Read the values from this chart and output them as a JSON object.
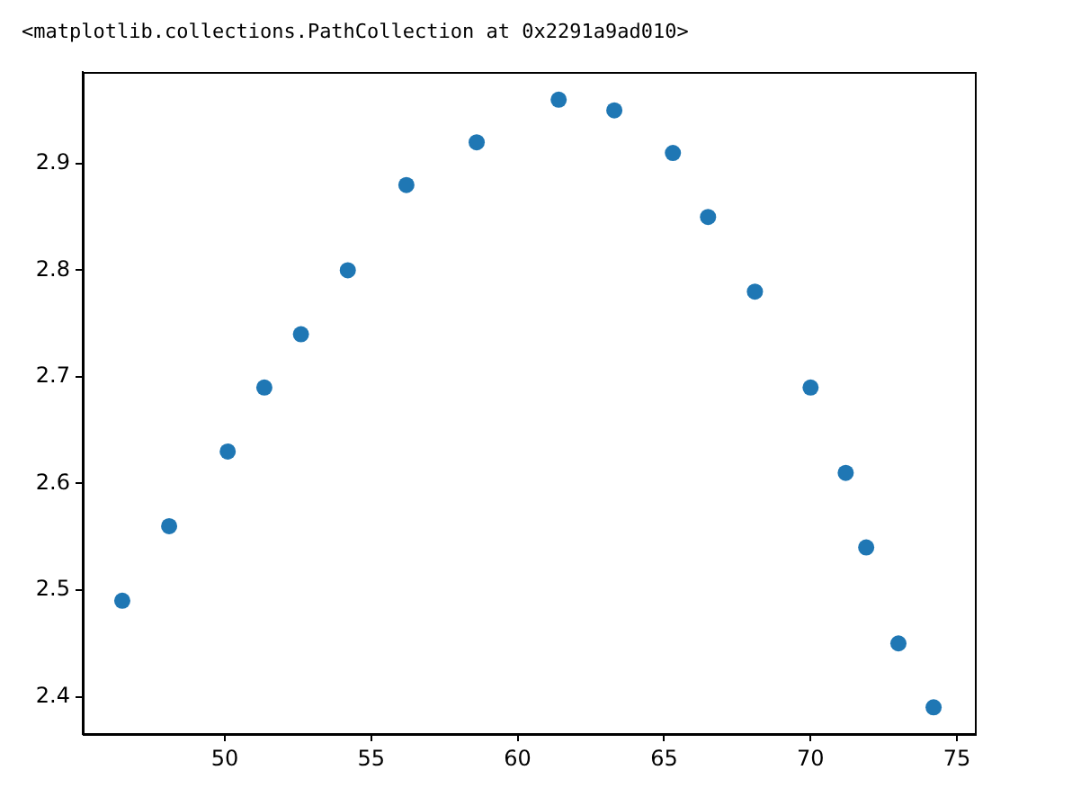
{
  "chart_data": {
    "type": "scatter",
    "annotations": [
      "<matplotlib.collections.PathCollection at 0x2291a9ad010>"
    ],
    "x": [
      46.5,
      48.1,
      50.1,
      51.35,
      52.6,
      54.2,
      56.2,
      58.6,
      61.4,
      63.3,
      65.3,
      66.5,
      68.1,
      70.0,
      71.2,
      71.9,
      73.0,
      74.2
    ],
    "series": [
      {
        "color": "#1f77b4",
        "values": [
          2.49,
          2.56,
          2.63,
          2.69,
          2.74,
          2.8,
          2.88,
          2.92,
          2.96,
          2.95,
          2.91,
          2.85,
          2.78,
          2.69,
          2.61,
          2.54,
          2.45,
          2.39
        ]
      }
    ],
    "xlim": [
      45.15,
      75.61
    ],
    "ylim": [
      2.365,
      2.986
    ],
    "xticks": [
      50,
      55,
      60,
      65,
      70,
      75
    ],
    "yticks": [
      2.4,
      2.5,
      2.6,
      2.7,
      2.8,
      2.9
    ],
    "marker": "circle"
  }
}
